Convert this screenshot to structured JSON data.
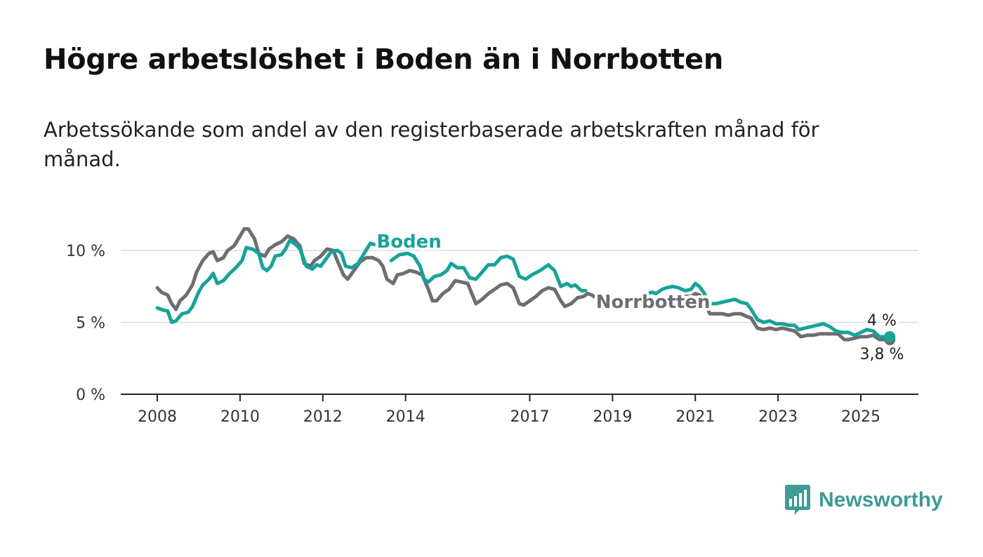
{
  "header": {
    "title": "Högre arbetslöshet i Boden än i Norrbotten",
    "subtitle": "Arbetssökande som andel av den registerbaserade arbetskraften månad för månad."
  },
  "logo": {
    "text": "Newsworthy",
    "icon": "bar-chart-speech-bubble-icon",
    "color": "#3e9b95"
  },
  "chart_data": {
    "type": "line",
    "y_ticks": [
      {
        "value": 0,
        "label": "0 %"
      },
      {
        "value": 5,
        "label": "5 %"
      },
      {
        "value": 10,
        "label": "10 %"
      }
    ],
    "x_ticks": [
      {
        "value": 2008,
        "label": "2008"
      },
      {
        "value": 2010,
        "label": "2010"
      },
      {
        "value": 2012,
        "label": "2012"
      },
      {
        "value": 2014,
        "label": "2014"
      },
      {
        "value": 2017,
        "label": "2017"
      },
      {
        "value": 2019,
        "label": "2019"
      },
      {
        "value": 2021,
        "label": "2021"
      },
      {
        "value": 2023,
        "label": "2023"
      },
      {
        "value": 2025,
        "label": "2025"
      }
    ],
    "xlim": [
      2007.1,
      2026.5
    ],
    "ylim": [
      0,
      11.7
    ],
    "grid": "horizontal",
    "series": [
      {
        "name": "Boden",
        "color": "#17a398",
        "end_label": "4 %",
        "points": [
          [
            2008.0,
            6.0
          ],
          [
            2008.15,
            5.85
          ],
          [
            2008.25,
            5.8
          ],
          [
            2008.35,
            5.0
          ],
          [
            2008.45,
            5.1
          ],
          [
            2008.6,
            5.6
          ],
          [
            2008.75,
            5.7
          ],
          [
            2008.85,
            6.1
          ],
          [
            2009.0,
            7.1
          ],
          [
            2009.1,
            7.6
          ],
          [
            2009.25,
            8.0
          ],
          [
            2009.35,
            8.4
          ],
          [
            2009.45,
            7.7
          ],
          [
            2009.6,
            7.9
          ],
          [
            2009.75,
            8.4
          ],
          [
            2009.9,
            8.8
          ],
          [
            2010.05,
            9.3
          ],
          [
            2010.15,
            10.2
          ],
          [
            2010.3,
            10.1
          ],
          [
            2010.45,
            9.8
          ],
          [
            2010.55,
            8.8
          ],
          [
            2010.65,
            8.6
          ],
          [
            2010.75,
            8.9
          ],
          [
            2010.85,
            9.6
          ],
          [
            2011.0,
            9.7
          ],
          [
            2011.1,
            10.1
          ],
          [
            2011.2,
            10.7
          ],
          [
            2011.35,
            10.4
          ],
          [
            2011.45,
            10.1
          ],
          [
            2011.6,
            8.9
          ],
          [
            2011.75,
            8.7
          ],
          [
            2011.85,
            9.0
          ],
          [
            2011.95,
            8.9
          ],
          [
            2012.05,
            9.3
          ],
          [
            2012.2,
            9.9
          ],
          [
            2012.35,
            10.0
          ],
          [
            2012.45,
            9.8
          ],
          [
            2012.55,
            8.9
          ],
          [
            2012.7,
            8.8
          ],
          [
            2012.85,
            9.1
          ],
          [
            2013.0,
            9.8
          ],
          [
            2013.15,
            10.5
          ],
          [
            2013.25,
            10.4
          ]
        ],
        "points_2": [
          [
            2013.65,
            9.3
          ],
          [
            2013.85,
            9.7
          ],
          [
            2014.05,
            9.8
          ],
          [
            2014.2,
            9.6
          ],
          [
            2014.35,
            8.9
          ],
          [
            2014.45,
            8.0
          ],
          [
            2014.55,
            7.8
          ],
          [
            2014.7,
            8.2
          ],
          [
            2014.85,
            8.3
          ],
          [
            2015.0,
            8.6
          ],
          [
            2015.1,
            9.1
          ],
          [
            2015.25,
            8.8
          ],
          [
            2015.4,
            8.8
          ],
          [
            2015.55,
            8.1
          ],
          [
            2015.7,
            8.0
          ],
          [
            2015.85,
            8.5
          ],
          [
            2016.0,
            9.0
          ],
          [
            2016.15,
            9.0
          ],
          [
            2016.3,
            9.5
          ],
          [
            2016.45,
            9.6
          ],
          [
            2016.6,
            9.4
          ],
          [
            2016.75,
            8.2
          ],
          [
            2016.9,
            8.0
          ],
          [
            2017.05,
            8.3
          ],
          [
            2017.25,
            8.6
          ],
          [
            2017.45,
            9.0
          ],
          [
            2017.6,
            8.6
          ],
          [
            2017.75,
            7.5
          ],
          [
            2017.9,
            7.7
          ],
          [
            2018.0,
            7.5
          ],
          [
            2018.1,
            7.6
          ],
          [
            2018.25,
            7.2
          ],
          [
            2018.35,
            7.2
          ]
        ],
        "points_3": [
          [
            2019.65,
            6.7
          ],
          [
            2019.8,
            6.9
          ],
          [
            2019.95,
            7.1
          ],
          [
            2020.05,
            7.0
          ],
          [
            2020.2,
            7.3
          ],
          [
            2020.3,
            7.4
          ],
          [
            2020.45,
            7.5
          ],
          [
            2020.6,
            7.4
          ],
          [
            2020.75,
            7.2
          ],
          [
            2020.9,
            7.3
          ],
          [
            2021.0,
            7.7
          ],
          [
            2021.1,
            7.5
          ],
          [
            2021.2,
            7.1
          ],
          [
            2021.35,
            6.3
          ],
          [
            2021.5,
            6.3
          ],
          [
            2021.65,
            6.4
          ],
          [
            2021.8,
            6.5
          ],
          [
            2021.95,
            6.6
          ],
          [
            2022.1,
            6.4
          ],
          [
            2022.25,
            6.3
          ],
          [
            2022.35,
            5.9
          ],
          [
            2022.5,
            5.2
          ],
          [
            2022.65,
            5.0
          ],
          [
            2022.8,
            5.1
          ],
          [
            2022.95,
            4.9
          ],
          [
            2023.1,
            4.9
          ],
          [
            2023.25,
            4.8
          ],
          [
            2023.4,
            4.8
          ],
          [
            2023.5,
            4.5
          ],
          [
            2023.65,
            4.6
          ],
          [
            2023.8,
            4.7
          ],
          [
            2023.95,
            4.8
          ],
          [
            2024.1,
            4.9
          ],
          [
            2024.25,
            4.7
          ],
          [
            2024.4,
            4.4
          ],
          [
            2024.55,
            4.3
          ],
          [
            2024.7,
            4.3
          ],
          [
            2024.85,
            4.1
          ],
          [
            2025.0,
            4.3
          ],
          [
            2025.15,
            4.5
          ],
          [
            2025.3,
            4.4
          ],
          [
            2025.45,
            4.0
          ],
          [
            2025.7,
            4.0
          ]
        ]
      },
      {
        "name": "Norrbotten",
        "color": "#6d6d72",
        "end_label": "3,8 %",
        "points": [
          [
            2008.0,
            7.4
          ],
          [
            2008.1,
            7.1
          ],
          [
            2008.25,
            6.9
          ],
          [
            2008.35,
            6.3
          ],
          [
            2008.45,
            5.9
          ],
          [
            2008.55,
            6.5
          ],
          [
            2008.7,
            6.9
          ],
          [
            2008.85,
            7.6
          ],
          [
            2008.95,
            8.5
          ],
          [
            2009.1,
            9.3
          ],
          [
            2009.25,
            9.8
          ],
          [
            2009.35,
            9.9
          ],
          [
            2009.45,
            9.3
          ],
          [
            2009.6,
            9.5
          ],
          [
            2009.7,
            10.0
          ],
          [
            2009.85,
            10.3
          ],
          [
            2010.0,
            11.0
          ],
          [
            2010.1,
            11.5
          ],
          [
            2010.2,
            11.5
          ],
          [
            2010.35,
            10.8
          ],
          [
            2010.45,
            9.8
          ],
          [
            2010.6,
            9.6
          ],
          [
            2010.7,
            10.1
          ],
          [
            2010.85,
            10.4
          ],
          [
            2011.0,
            10.6
          ],
          [
            2011.15,
            11.0
          ],
          [
            2011.3,
            10.8
          ],
          [
            2011.45,
            10.3
          ],
          [
            2011.55,
            9.1
          ],
          [
            2011.7,
            8.9
          ],
          [
            2011.8,
            9.3
          ],
          [
            2011.95,
            9.6
          ],
          [
            2012.1,
            10.1
          ],
          [
            2012.25,
            10.0
          ],
          [
            2012.35,
            9.3
          ],
          [
            2012.5,
            8.3
          ],
          [
            2012.6,
            8.0
          ],
          [
            2012.75,
            8.6
          ],
          [
            2012.9,
            9.2
          ],
          [
            2013.05,
            9.5
          ],
          [
            2013.2,
            9.5
          ],
          [
            2013.35,
            9.3
          ],
          [
            2013.45,
            8.9
          ],
          [
            2013.55,
            8.0
          ],
          [
            2013.7,
            7.7
          ],
          [
            2013.8,
            8.3
          ],
          [
            2013.95,
            8.4
          ],
          [
            2014.1,
            8.6
          ],
          [
            2014.25,
            8.5
          ],
          [
            2014.4,
            8.3
          ],
          [
            2014.55,
            7.3
          ],
          [
            2014.65,
            6.5
          ],
          [
            2014.75,
            6.5
          ],
          [
            2014.9,
            7.0
          ],
          [
            2015.05,
            7.3
          ],
          [
            2015.2,
            7.9
          ],
          [
            2015.35,
            7.8
          ],
          [
            2015.5,
            7.7
          ],
          [
            2015.6,
            7.0
          ],
          [
            2015.7,
            6.3
          ],
          [
            2015.85,
            6.6
          ],
          [
            2016.0,
            7.0
          ],
          [
            2016.15,
            7.3
          ],
          [
            2016.3,
            7.6
          ],
          [
            2016.45,
            7.7
          ],
          [
            2016.6,
            7.4
          ],
          [
            2016.75,
            6.3
          ],
          [
            2016.85,
            6.2
          ],
          [
            2017.0,
            6.5
          ],
          [
            2017.15,
            6.8
          ],
          [
            2017.3,
            7.2
          ],
          [
            2017.45,
            7.4
          ],
          [
            2017.6,
            7.3
          ],
          [
            2017.75,
            6.5
          ],
          [
            2017.85,
            6.1
          ],
          [
            2018.0,
            6.3
          ],
          [
            2018.15,
            6.7
          ],
          [
            2018.3,
            6.8
          ],
          [
            2018.4,
            7.0
          ],
          [
            2018.5,
            6.9
          ],
          [
            2018.55,
            6.8
          ]
        ],
        "points_2": [
          [
            2020.65,
            6.8
          ],
          [
            2020.75,
            6.8
          ],
          [
            2020.9,
            6.8
          ],
          [
            2021.0,
            7.0
          ],
          [
            2021.1,
            6.9
          ],
          [
            2021.2,
            6.6
          ],
          [
            2021.35,
            5.6
          ],
          [
            2021.5,
            5.6
          ],
          [
            2021.65,
            5.6
          ],
          [
            2021.8,
            5.5
          ],
          [
            2021.95,
            5.6
          ],
          [
            2022.1,
            5.6
          ],
          [
            2022.25,
            5.4
          ],
          [
            2022.35,
            5.3
          ],
          [
            2022.5,
            4.6
          ],
          [
            2022.65,
            4.5
          ],
          [
            2022.8,
            4.6
          ],
          [
            2022.95,
            4.5
          ],
          [
            2023.1,
            4.6
          ],
          [
            2023.25,
            4.5
          ],
          [
            2023.4,
            4.4
          ],
          [
            2023.55,
            4.0
          ],
          [
            2023.7,
            4.1
          ],
          [
            2023.85,
            4.1
          ],
          [
            2024.0,
            4.2
          ],
          [
            2024.15,
            4.2
          ],
          [
            2024.3,
            4.2
          ],
          [
            2024.45,
            4.2
          ],
          [
            2024.6,
            3.8
          ],
          [
            2024.7,
            3.8
          ],
          [
            2024.85,
            3.9
          ],
          [
            2025.0,
            4.0
          ],
          [
            2025.15,
            4.0
          ],
          [
            2025.3,
            4.1
          ],
          [
            2025.45,
            3.8
          ],
          [
            2025.7,
            3.8
          ]
        ]
      }
    ],
    "series_labels": [
      {
        "text": "Boden",
        "at": [
          2013.3,
          10.2
        ]
      },
      {
        "text": "Norrbotten",
        "at": [
          2018.6,
          6.0
        ]
      }
    ]
  }
}
